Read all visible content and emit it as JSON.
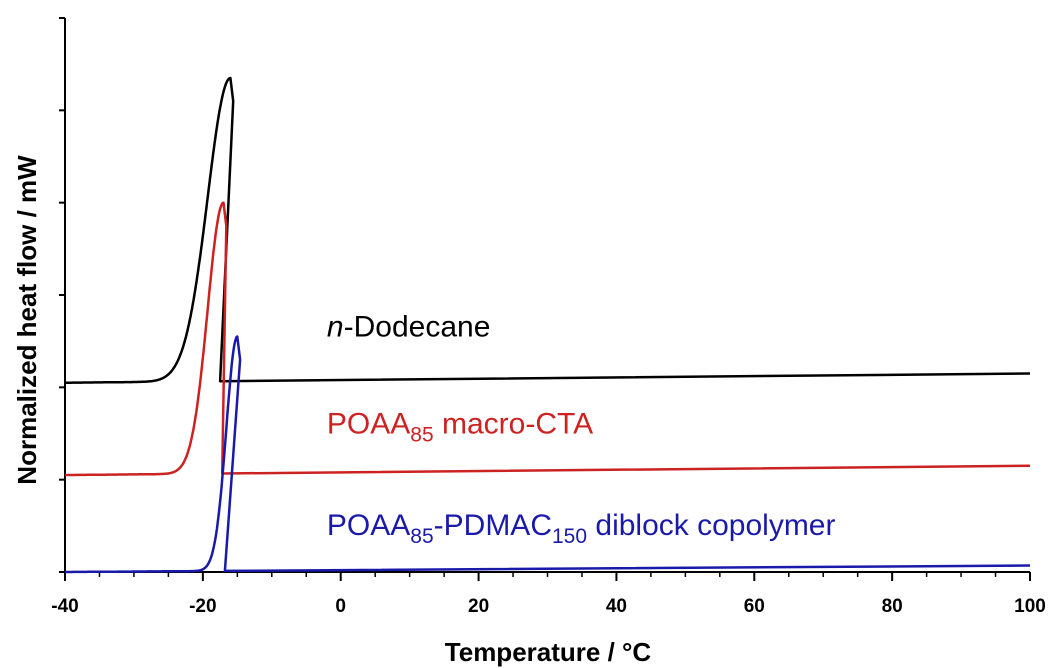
{
  "chart_data": {
    "type": "line",
    "xlabel": "Temperature / °C",
    "ylabel": "Normalized heat flow / mW",
    "xlim": [
      -40,
      100
    ],
    "ylim": [
      0,
      6
    ],
    "x_ticks": [
      "-40",
      "-20",
      "0",
      "20",
      "40",
      "60",
      "80",
      "100"
    ],
    "y_tick_labels_shown": false,
    "grid": false,
    "legend": "inline labels",
    "series": [
      {
        "name": "n-Dodecane",
        "label_parts": [
          {
            "text": "n",
            "style": "italic"
          },
          {
            "text": "-Dodecane"
          }
        ],
        "color": "#000000",
        "baseline_start": 2.05,
        "baseline_end": 2.15,
        "onset": -24,
        "peak_x": -16.0,
        "peak_y": 5.35,
        "width": 3.3,
        "drop_x": -17.5,
        "label_anchor": [
          -2,
          2.55
        ]
      },
      {
        "name": "POAA85 macro-CTA",
        "label_parts": [
          {
            "text": "POAA"
          },
          {
            "text": "85",
            "style": "sub"
          },
          {
            "text": " macro-CTA"
          }
        ],
        "color": "#cc2222",
        "baseline_start": 1.05,
        "baseline_end": 1.15,
        "onset": -22,
        "peak_x": -17.0,
        "peak_y": 4.0,
        "width": 2.3,
        "drop_x": -17.2,
        "label_anchor": [
          -2,
          1.5
        ]
      },
      {
        "name": "POAA85-PDMAC150 diblock copolymer",
        "label_parts": [
          {
            "text": "POAA"
          },
          {
            "text": "85",
            "style": "sub"
          },
          {
            "text": "-PDMAC"
          },
          {
            "text": "150",
            "style": "sub"
          },
          {
            "text": " diblock copolymer"
          }
        ],
        "color": "#1a1aaa",
        "baseline_start": 0.0,
        "baseline_end": 0.07,
        "onset": -20,
        "peak_x": -15.0,
        "peak_y": 2.55,
        "width": 1.6,
        "drop_x": -16.8,
        "label_anchor": [
          -2,
          0.4
        ]
      }
    ]
  }
}
